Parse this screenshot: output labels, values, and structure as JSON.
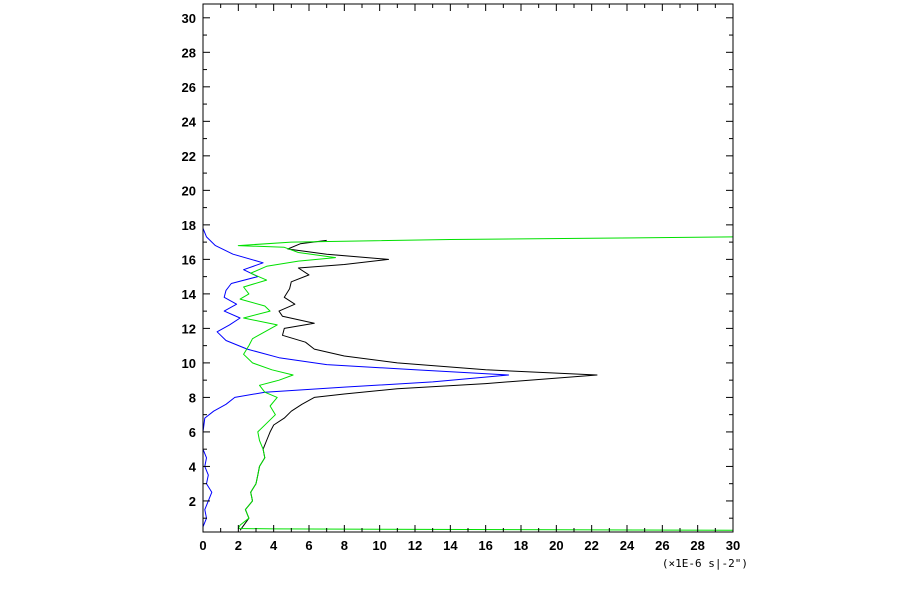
{
  "chart_data": {
    "type": "line",
    "title": "",
    "xlabel": "",
    "ylabel": "",
    "x_unit_label": "(×1E-6 s|-2\")",
    "xlim": [
      0,
      30
    ],
    "ylim": [
      0.2,
      30.8
    ],
    "x_ticks": [
      0,
      2,
      4,
      6,
      8,
      10,
      12,
      14,
      16,
      18,
      20,
      22,
      24,
      26,
      28,
      30
    ],
    "y_ticks": [
      2,
      4,
      6,
      8,
      10,
      12,
      14,
      16,
      18,
      20,
      22,
      24,
      26,
      28,
      30
    ],
    "grid": false,
    "legend": "none",
    "series": [
      {
        "color": "#000000",
        "points": [
          [
            2.1,
            0.3
          ],
          [
            2.6,
            1.0
          ],
          [
            2.4,
            1.5
          ],
          [
            2.8,
            2.0
          ],
          [
            2.7,
            2.5
          ],
          [
            3.0,
            3.0
          ],
          [
            3.1,
            3.5
          ],
          [
            3.2,
            4.0
          ],
          [
            3.5,
            4.5
          ],
          [
            3.4,
            5.0
          ],
          [
            3.6,
            5.5
          ],
          [
            3.8,
            6.0
          ],
          [
            4.0,
            6.4
          ],
          [
            4.6,
            6.8
          ],
          [
            5.0,
            7.2
          ],
          [
            5.6,
            7.6
          ],
          [
            6.3,
            8.0
          ],
          [
            8.0,
            8.2
          ],
          [
            11.0,
            8.5
          ],
          [
            16.0,
            8.8
          ],
          [
            22.3,
            9.3
          ],
          [
            16.0,
            9.6
          ],
          [
            11.0,
            10.0
          ],
          [
            8.0,
            10.4
          ],
          [
            6.3,
            10.8
          ],
          [
            5.8,
            11.2
          ],
          [
            4.5,
            11.6
          ],
          [
            4.6,
            12.0
          ],
          [
            6.3,
            12.3
          ],
          [
            4.5,
            12.7
          ],
          [
            4.3,
            13.0
          ],
          [
            5.2,
            13.4
          ],
          [
            4.6,
            13.8
          ],
          [
            4.9,
            14.3
          ],
          [
            5.0,
            14.7
          ],
          [
            6.0,
            15.1
          ],
          [
            5.4,
            15.5
          ],
          [
            8.0,
            15.7
          ],
          [
            10.5,
            16.0
          ],
          [
            7.0,
            16.3
          ],
          [
            4.8,
            16.6
          ],
          [
            5.5,
            16.9
          ],
          [
            7.0,
            17.1
          ]
        ]
      },
      {
        "color": "#0000ff",
        "points": [
          [
            0.0,
            0.5
          ],
          [
            0.2,
            1.0
          ],
          [
            0.1,
            1.5
          ],
          [
            0.3,
            2.0
          ],
          [
            0.5,
            2.5
          ],
          [
            0.2,
            3.0
          ],
          [
            0.3,
            3.5
          ],
          [
            0.1,
            4.0
          ],
          [
            0.2,
            4.5
          ],
          [
            0.0,
            5.0
          ],
          [
            0.0,
            6.0
          ],
          [
            0.1,
            6.8
          ],
          [
            0.6,
            7.2
          ],
          [
            1.3,
            7.6
          ],
          [
            1.8,
            8.0
          ],
          [
            3.5,
            8.3
          ],
          [
            8.0,
            8.6
          ],
          [
            13.0,
            8.9
          ],
          [
            17.3,
            9.3
          ],
          [
            12.0,
            9.6
          ],
          [
            7.0,
            9.9
          ],
          [
            4.3,
            10.3
          ],
          [
            2.5,
            10.8
          ],
          [
            1.3,
            11.3
          ],
          [
            0.8,
            11.8
          ],
          [
            1.5,
            12.2
          ],
          [
            2.1,
            12.6
          ],
          [
            1.2,
            13.0
          ],
          [
            1.9,
            13.4
          ],
          [
            1.2,
            13.8
          ],
          [
            1.3,
            14.2
          ],
          [
            1.6,
            14.6
          ],
          [
            3.1,
            15.0
          ],
          [
            2.3,
            15.4
          ],
          [
            3.4,
            15.8
          ],
          [
            1.7,
            16.3
          ],
          [
            0.7,
            16.8
          ],
          [
            0.2,
            17.3
          ],
          [
            0.0,
            17.8
          ]
        ]
      },
      {
        "color": "#00e000",
        "points": [
          [
            30.0,
            0.3
          ],
          [
            20.0,
            0.33
          ],
          [
            10.0,
            0.36
          ],
          [
            4.0,
            0.38
          ],
          [
            2.0,
            0.4
          ],
          [
            2.1,
            0.6
          ],
          [
            2.6,
            1.0
          ],
          [
            2.4,
            1.5
          ],
          [
            2.8,
            2.0
          ],
          [
            2.7,
            2.5
          ],
          [
            3.0,
            3.0
          ],
          [
            3.1,
            3.5
          ],
          [
            3.2,
            4.0
          ],
          [
            3.5,
            4.5
          ],
          [
            3.4,
            5.0
          ],
          [
            3.2,
            5.5
          ],
          [
            3.1,
            6.0
          ],
          [
            3.6,
            6.5
          ],
          [
            4.1,
            7.0
          ],
          [
            3.8,
            7.5
          ],
          [
            4.2,
            8.0
          ],
          [
            3.5,
            8.3
          ],
          [
            3.2,
            8.7
          ],
          [
            4.3,
            9.0
          ],
          [
            5.1,
            9.3
          ],
          [
            3.9,
            9.6
          ],
          [
            2.8,
            10.0
          ],
          [
            2.3,
            10.5
          ],
          [
            2.6,
            11.0
          ],
          [
            2.8,
            11.4
          ],
          [
            3.5,
            11.8
          ],
          [
            4.2,
            12.2
          ],
          [
            2.3,
            12.6
          ],
          [
            3.8,
            13.0
          ],
          [
            3.5,
            13.3
          ],
          [
            2.1,
            13.7
          ],
          [
            2.6,
            14.0
          ],
          [
            2.3,
            14.4
          ],
          [
            3.6,
            14.8
          ],
          [
            2.7,
            15.2
          ],
          [
            3.6,
            15.6
          ],
          [
            5.4,
            15.9
          ],
          [
            7.5,
            16.1
          ],
          [
            5.4,
            16.4
          ],
          [
            4.6,
            16.7
          ],
          [
            2.0,
            16.8
          ],
          [
            5.0,
            17.0
          ],
          [
            14.0,
            17.15
          ],
          [
            22.0,
            17.22
          ],
          [
            30.0,
            17.3
          ]
        ]
      }
    ]
  }
}
